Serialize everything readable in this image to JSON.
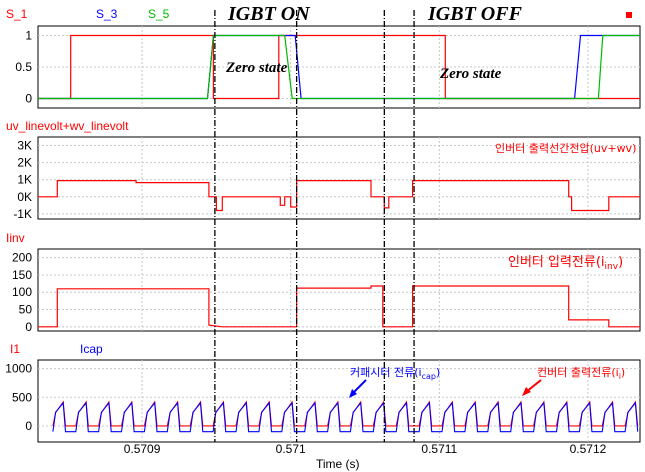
{
  "chart_data": [
    {
      "type": "line",
      "panel": "gate-signals",
      "legend": [
        "S_1",
        "S_3",
        "S_5"
      ],
      "colors": [
        "#ff0000",
        "#0000ff",
        "#00bb00"
      ],
      "y_ticks": [
        "1",
        "0.5",
        "0"
      ],
      "ylim": [
        -0.15,
        1.15
      ],
      "series": [
        {
          "name": "S_1",
          "points": [
            [
              0.57083,
              0
            ],
            [
              0.570852,
              0
            ],
            [
              0.570852,
              1
            ],
            [
              0.570948,
              1
            ],
            [
              0.570948,
              0
            ],
            [
              0.570992,
              0
            ],
            [
              0.570992,
              1
            ],
            [
              0.571104,
              1
            ],
            [
              0.571104,
              0
            ],
            [
              0.571235,
              0
            ]
          ]
        },
        {
          "name": "S_3",
          "points": [
            [
              0.57083,
              0
            ],
            [
              0.570944,
              0
            ],
            [
              0.570948,
              1
            ],
            [
              0.571003,
              1
            ],
            [
              0.571007,
              0
            ],
            [
              0.571191,
              0
            ],
            [
              0.571195,
              1
            ],
            [
              0.571235,
              1
            ]
          ]
        },
        {
          "name": "S_5",
          "points": [
            [
              0.57083,
              0
            ],
            [
              0.570944,
              0
            ],
            [
              0.570948,
              1
            ],
            [
              0.570996,
              1
            ],
            [
              0.571001,
              0
            ],
            [
              0.571207,
              0
            ],
            [
              0.57121,
              1
            ],
            [
              0.571235,
              1
            ]
          ]
        }
      ]
    },
    {
      "type": "line",
      "panel": "line-voltage",
      "title": "uv_linevolt+wv_linevolt",
      "annotation": "인버터 출력선간전압(uv+wv)",
      "colors": [
        "#ff0000"
      ],
      "y_ticks": [
        "3K",
        "2K",
        "1K",
        "0K",
        "-1K"
      ],
      "ylim": [
        -1300,
        3500
      ],
      "series": [
        {
          "name": "uv_linevolt+wv_linevolt",
          "points": [
            [
              0.57083,
              0
            ],
            [
              0.570843,
              0
            ],
            [
              0.570843,
              950
            ],
            [
              0.570896,
              950
            ],
            [
              0.570896,
              830
            ],
            [
              0.570945,
              830
            ],
            [
              0.570945,
              0
            ],
            [
              0.57095,
              0
            ],
            [
              0.57095,
              -800
            ],
            [
              0.570954,
              -800
            ],
            [
              0.570954,
              0
            ],
            [
              0.570993,
              0
            ],
            [
              0.570993,
              -500
            ],
            [
              0.570996,
              -500
            ],
            [
              0.570996,
              0
            ],
            [
              0.571,
              0
            ],
            [
              0.571,
              -600
            ],
            [
              0.571004,
              -600
            ],
            [
              0.571004,
              950
            ],
            [
              0.571054,
              950
            ],
            [
              0.571054,
              0
            ],
            [
              0.571063,
              0
            ],
            [
              0.571063,
              -650
            ],
            [
              0.571066,
              -650
            ],
            [
              0.571066,
              0
            ],
            [
              0.571082,
              0
            ],
            [
              0.571082,
              950
            ],
            [
              0.571103,
              950
            ],
            [
              0.571103,
              950
            ],
            [
              0.571125,
              950
            ],
            [
              0.571125,
              950
            ],
            [
              0.571187,
              950
            ],
            [
              0.571187,
              0
            ],
            [
              0.571189,
              0
            ],
            [
              0.571189,
              -800
            ],
            [
              0.571214,
              -800
            ],
            [
              0.571214,
              0
            ],
            [
              0.571235,
              0
            ]
          ]
        }
      ]
    },
    {
      "type": "line",
      "panel": "inverter-current",
      "title": "Iinv",
      "annotation": "인버터 입력전류(i",
      "annotation_sub": "inv",
      "annotation_close": ")",
      "colors": [
        "#ff0000"
      ],
      "y_ticks": [
        "200",
        "150",
        "100",
        "50",
        "0"
      ],
      "ylim": [
        -12,
        225
      ],
      "series": [
        {
          "name": "Iinv",
          "points": [
            [
              0.57083,
              0
            ],
            [
              0.570843,
              0
            ],
            [
              0.570843,
              110
            ],
            [
              0.570945,
              110
            ],
            [
              0.570945,
              5
            ],
            [
              0.570954,
              0
            ],
            [
              0.570993,
              0
            ],
            [
              0.570993,
              0
            ],
            [
              0.571004,
              0
            ],
            [
              0.571004,
              112
            ],
            [
              0.571054,
              112
            ],
            [
              0.571054,
              118
            ],
            [
              0.571062,
              118
            ],
            [
              0.571062,
              0
            ],
            [
              0.571082,
              0
            ],
            [
              0.571082,
              118
            ],
            [
              0.571187,
              118
            ],
            [
              0.571187,
              20
            ],
            [
              0.571214,
              20
            ],
            [
              0.571214,
              0
            ],
            [
              0.571235,
              0
            ]
          ]
        }
      ]
    },
    {
      "type": "line",
      "panel": "converter-and-capacitor-current",
      "legend": [
        "I1",
        "Icap"
      ],
      "colors": [
        "#ff0000",
        "#0000ff"
      ],
      "y_ticks": [
        "1000",
        "500",
        "0"
      ],
      "ylim": [
        -280,
        1150
      ],
      "x_ticks": [
        "0.5709",
        "0.571",
        "0.5711",
        "0.5712"
      ],
      "x_tick_values": [
        0.5709,
        0.571,
        0.5711,
        0.5712
      ],
      "xlabel": "Time (s)",
      "annotation_cap": "커패시터 전류(i",
      "annotation_cap_sub": "cap",
      "annotation_cap_close": ")",
      "annotation_conv": "컨버터 출력전류(i",
      "annotation_conv_sub": "i",
      "annotation_conv_close": ")",
      "series": [
        {
          "name": "I1",
          "period": 1.54e-05,
          "start": 0.57084,
          "peak": 420,
          "floor": 0
        },
        {
          "name": "Icap",
          "period": 1.54e-05,
          "start": 0.57084,
          "peak": 400,
          "floor": -100
        }
      ]
    }
  ],
  "annotations": {
    "igbt_on": "IGBT ON",
    "igbt_off": "IGBT OFF",
    "zero_state_1": "Zero state",
    "zero_state_2": "Zero state"
  },
  "x_range": [
    0.57083,
    0.571235
  ],
  "markers_x": [
    0.570949,
    0.571004,
    0.571063,
    0.571083
  ]
}
